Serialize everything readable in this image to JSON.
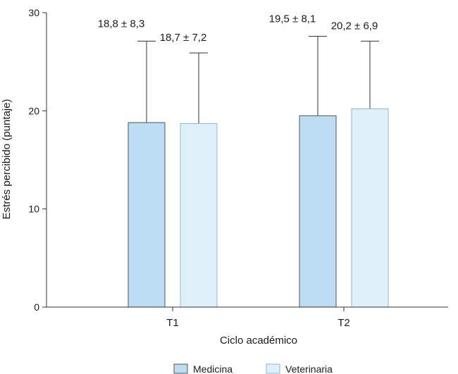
{
  "chart_data": {
    "type": "bar",
    "title": "",
    "xlabel": "Ciclo académico",
    "ylabel": "Estrés percibido (puntaje)",
    "ylim": [
      0,
      30
    ],
    "yticks": [
      0,
      10,
      20,
      30
    ],
    "ytick_labels": [
      "0",
      "10",
      "20",
      "30"
    ],
    "categories": [
      "T1",
      "T2"
    ],
    "series": [
      {
        "name": "Medicina",
        "color": "#bcdcf2",
        "values": [
          18.8,
          19.5
        ],
        "errors": [
          8.3,
          8.1
        ],
        "labels": [
          "18,8 ± 8,3",
          "19,5 ± 8,1"
        ]
      },
      {
        "name": "Veterinaria",
        "color": "#dff0fa",
        "values": [
          18.7,
          20.2
        ],
        "errors": [
          7.2,
          6.9
        ],
        "labels": [
          "18,7 ± 7,2",
          "20,2 ± 6,9"
        ]
      }
    ],
    "legend": [
      "Medicina",
      "Veterinaria"
    ],
    "legend_position": "bottom-center",
    "grid": false
  }
}
